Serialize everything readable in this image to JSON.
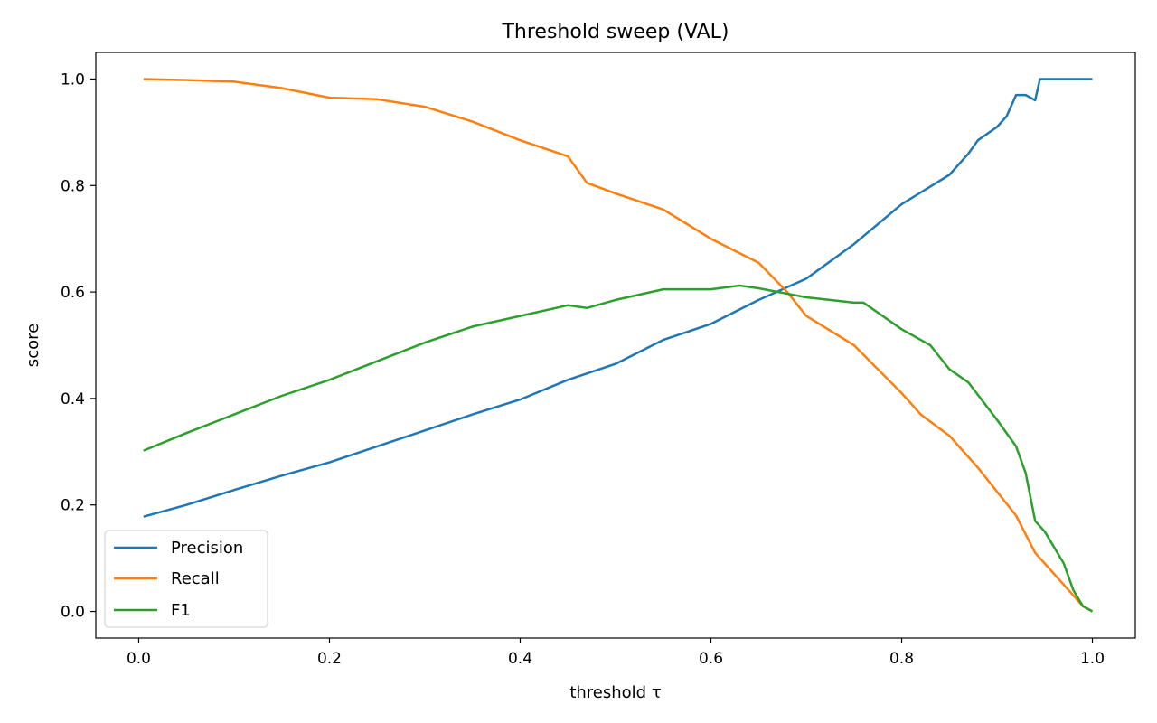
{
  "chart_data": {
    "type": "line",
    "title": "Threshold sweep (VAL)",
    "xlabel": "threshold τ",
    "ylabel": "score",
    "xlim": [
      -0.045,
      1.045
    ],
    "ylim": [
      -0.05,
      1.05
    ],
    "xticks": [
      0.0,
      0.2,
      0.4,
      0.6,
      0.8,
      1.0
    ],
    "xtick_labels": [
      "0.0",
      "0.2",
      "0.4",
      "0.6",
      "0.8",
      "1.0"
    ],
    "yticks": [
      0.0,
      0.2,
      0.4,
      0.6,
      0.8,
      1.0
    ],
    "ytick_labels": [
      "0.0",
      "0.2",
      "0.4",
      "0.6",
      "0.8",
      "1.0"
    ],
    "grid": false,
    "legend_position": "lower-left",
    "series": [
      {
        "name": "Precision",
        "color": "#1f77b4",
        "x": [
          0.005,
          0.05,
          0.1,
          0.15,
          0.2,
          0.25,
          0.3,
          0.35,
          0.4,
          0.45,
          0.5,
          0.55,
          0.6,
          0.65,
          0.7,
          0.75,
          0.8,
          0.85,
          0.87,
          0.88,
          0.9,
          0.91,
          0.92,
          0.93,
          0.94,
          0.945,
          0.95,
          0.96,
          0.98,
          1.0
        ],
        "y": [
          0.178,
          0.2,
          0.228,
          0.255,
          0.28,
          0.31,
          0.34,
          0.37,
          0.398,
          0.435,
          0.465,
          0.51,
          0.54,
          0.585,
          0.625,
          0.69,
          0.765,
          0.82,
          0.86,
          0.885,
          0.91,
          0.93,
          0.97,
          0.97,
          0.96,
          1.0,
          1.0,
          1.0,
          1.0,
          1.0
        ]
      },
      {
        "name": "Recall",
        "color": "#ff7f0e",
        "x": [
          0.005,
          0.05,
          0.1,
          0.15,
          0.2,
          0.25,
          0.3,
          0.35,
          0.4,
          0.45,
          0.47,
          0.5,
          0.55,
          0.6,
          0.65,
          0.68,
          0.7,
          0.75,
          0.8,
          0.82,
          0.85,
          0.88,
          0.9,
          0.92,
          0.94,
          0.95,
          0.97,
          0.99,
          1.0
        ],
        "y": [
          1.0,
          0.998,
          0.995,
          0.983,
          0.965,
          0.962,
          0.948,
          0.92,
          0.885,
          0.855,
          0.805,
          0.785,
          0.755,
          0.7,
          0.655,
          0.6,
          0.555,
          0.5,
          0.41,
          0.37,
          0.33,
          0.27,
          0.225,
          0.18,
          0.11,
          0.09,
          0.05,
          0.01,
          0.0
        ]
      },
      {
        "name": "F1",
        "color": "#2ca02c",
        "x": [
          0.005,
          0.05,
          0.1,
          0.15,
          0.2,
          0.25,
          0.3,
          0.35,
          0.4,
          0.45,
          0.47,
          0.5,
          0.55,
          0.6,
          0.63,
          0.65,
          0.7,
          0.75,
          0.76,
          0.8,
          0.83,
          0.85,
          0.87,
          0.9,
          0.92,
          0.93,
          0.94,
          0.95,
          0.97,
          0.98,
          0.99,
          1.0
        ],
        "y": [
          0.302,
          0.335,
          0.37,
          0.405,
          0.435,
          0.47,
          0.505,
          0.535,
          0.555,
          0.575,
          0.57,
          0.585,
          0.605,
          0.605,
          0.612,
          0.607,
          0.59,
          0.58,
          0.58,
          0.53,
          0.5,
          0.455,
          0.43,
          0.36,
          0.31,
          0.26,
          0.17,
          0.15,
          0.09,
          0.04,
          0.01,
          0.0
        ]
      }
    ]
  }
}
